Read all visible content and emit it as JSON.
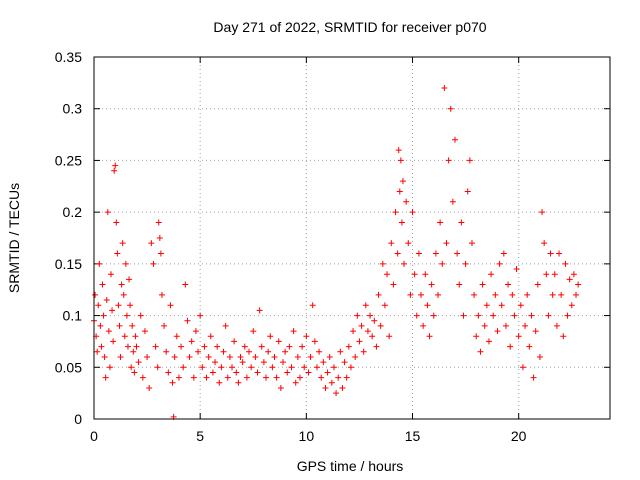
{
  "chart_data": {
    "type": "scatter",
    "title": "Day 271 of 2022, SRMTID for receiver p070",
    "xlabel": "GPS time / hours",
    "ylabel": "SRMTID / TECUs",
    "xlim": [
      0,
      24.3
    ],
    "ylim": [
      0,
      0.35
    ],
    "xticks": [
      0,
      5,
      10,
      15,
      20
    ],
    "xtick_labels": [
      "0",
      "5",
      "10",
      "15",
      "20"
    ],
    "yticks": [
      0,
      0.05,
      0.1,
      0.15,
      0.2,
      0.25,
      0.3,
      0.35
    ],
    "ytick_labels": [
      "0",
      "0.05",
      "0.1",
      "0.15",
      "0.2",
      "0.25",
      "0.3",
      "0.35"
    ],
    "grid": true,
    "marker": "+",
    "color": "#ff0000",
    "series": [
      {
        "name": "SRMTID",
        "points": [
          [
            0.0,
            0.095
          ],
          [
            0.05,
            0.12
          ],
          [
            0.1,
            0.08
          ],
          [
            0.15,
            0.065
          ],
          [
            0.2,
            0.11
          ],
          [
            0.25,
            0.15
          ],
          [
            0.3,
            0.09
          ],
          [
            0.35,
            0.07
          ],
          [
            0.4,
            0.13
          ],
          [
            0.45,
            0.1
          ],
          [
            0.5,
            0.06
          ],
          [
            0.55,
            0.04
          ],
          [
            0.6,
            0.115
          ],
          [
            0.65,
            0.2
          ],
          [
            0.7,
            0.085
          ],
          [
            0.75,
            0.05
          ],
          [
            0.8,
            0.14
          ],
          [
            0.85,
            0.105
          ],
          [
            0.9,
            0.075
          ],
          [
            0.95,
            0.24
          ],
          [
            1.0,
            0.245
          ],
          [
            1.05,
            0.19
          ],
          [
            1.1,
            0.16
          ],
          [
            1.15,
            0.11
          ],
          [
            1.2,
            0.09
          ],
          [
            1.25,
            0.06
          ],
          [
            1.3,
            0.13
          ],
          [
            1.35,
            0.17
          ],
          [
            1.4,
            0.12
          ],
          [
            1.45,
            0.08
          ],
          [
            1.5,
            0.15
          ],
          [
            1.55,
            0.1
          ],
          [
            1.6,
            0.07
          ],
          [
            1.65,
            0.135
          ],
          [
            1.7,
            0.11
          ],
          [
            1.75,
            0.05
          ],
          [
            1.8,
            0.09
          ],
          [
            1.85,
            0.065
          ],
          [
            1.9,
            0.045
          ],
          [
            1.95,
            0.08
          ],
          [
            2.0,
            0.07
          ],
          [
            2.1,
            0.055
          ],
          [
            2.2,
            0.1
          ],
          [
            2.3,
            0.04
          ],
          [
            2.4,
            0.085
          ],
          [
            2.5,
            0.06
          ],
          [
            2.6,
            0.03
          ],
          [
            2.7,
            0.17
          ],
          [
            2.8,
            0.15
          ],
          [
            2.9,
            0.07
          ],
          [
            3.0,
            0.05
          ],
          [
            3.05,
            0.19
          ],
          [
            3.1,
            0.175
          ],
          [
            3.15,
            0.16
          ],
          [
            3.2,
            0.12
          ],
          [
            3.3,
            0.09
          ],
          [
            3.4,
            0.065
          ],
          [
            3.5,
            0.045
          ],
          [
            3.6,
            0.11
          ],
          [
            3.7,
            0.035
          ],
          [
            3.75,
            0.002
          ],
          [
            3.8,
            0.06
          ],
          [
            3.9,
            0.08
          ],
          [
            4.0,
            0.04
          ],
          [
            4.1,
            0.07
          ],
          [
            4.2,
            0.05
          ],
          [
            4.3,
            0.13
          ],
          [
            4.4,
            0.095
          ],
          [
            4.5,
            0.06
          ],
          [
            4.6,
            0.075
          ],
          [
            4.7,
            0.04
          ],
          [
            4.8,
            0.085
          ],
          [
            4.9,
            0.065
          ],
          [
            5.0,
            0.1
          ],
          [
            5.1,
            0.05
          ],
          [
            5.2,
            0.07
          ],
          [
            5.3,
            0.04
          ],
          [
            5.4,
            0.06
          ],
          [
            5.5,
            0.08
          ],
          [
            5.6,
            0.045
          ],
          [
            5.7,
            0.055
          ],
          [
            5.8,
            0.07
          ],
          [
            5.9,
            0.035
          ],
          [
            6.0,
            0.05
          ],
          [
            6.1,
            0.065
          ],
          [
            6.2,
            0.09
          ],
          [
            6.3,
            0.04
          ],
          [
            6.4,
            0.06
          ],
          [
            6.5,
            0.05
          ],
          [
            6.6,
            0.075
          ],
          [
            6.7,
            0.045
          ],
          [
            6.8,
            0.035
          ],
          [
            6.9,
            0.06
          ],
          [
            7.0,
            0.055
          ],
          [
            7.1,
            0.07
          ],
          [
            7.2,
            0.04
          ],
          [
            7.3,
            0.065
          ],
          [
            7.4,
            0.05
          ],
          [
            7.5,
            0.085
          ],
          [
            7.6,
            0.06
          ],
          [
            7.7,
            0.045
          ],
          [
            7.8,
            0.105
          ],
          [
            7.9,
            0.07
          ],
          [
            8.0,
            0.055
          ],
          [
            8.1,
            0.04
          ],
          [
            8.2,
            0.065
          ],
          [
            8.3,
            0.08
          ],
          [
            8.4,
            0.05
          ],
          [
            8.5,
            0.06
          ],
          [
            8.6,
            0.04
          ],
          [
            8.7,
            0.075
          ],
          [
            8.8,
            0.03
          ],
          [
            8.9,
            0.055
          ],
          [
            9.0,
            0.065
          ],
          [
            9.1,
            0.045
          ],
          [
            9.2,
            0.07
          ],
          [
            9.3,
            0.05
          ],
          [
            9.4,
            0.085
          ],
          [
            9.5,
            0.035
          ],
          [
            9.6,
            0.06
          ],
          [
            9.7,
            0.04
          ],
          [
            9.8,
            0.07
          ],
          [
            9.9,
            0.05
          ],
          [
            10.0,
            0.08
          ],
          [
            10.1,
            0.045
          ],
          [
            10.2,
            0.06
          ],
          [
            10.3,
            0.11
          ],
          [
            10.4,
            0.075
          ],
          [
            10.5,
            0.05
          ],
          [
            10.6,
            0.065
          ],
          [
            10.7,
            0.04
          ],
          [
            10.8,
            0.055
          ],
          [
            10.9,
            0.03
          ],
          [
            11.0,
            0.045
          ],
          [
            11.1,
            0.06
          ],
          [
            11.2,
            0.035
          ],
          [
            11.3,
            0.05
          ],
          [
            11.4,
            0.025
          ],
          [
            11.5,
            0.04
          ],
          [
            11.6,
            0.065
          ],
          [
            11.7,
            0.03
          ],
          [
            11.8,
            0.055
          ],
          [
            11.9,
            0.04
          ],
          [
            12.0,
            0.07
          ],
          [
            12.1,
            0.05
          ],
          [
            12.2,
            0.085
          ],
          [
            12.3,
            0.06
          ],
          [
            12.4,
            0.1
          ],
          [
            12.5,
            0.075
          ],
          [
            12.6,
            0.09
          ],
          [
            12.7,
            0.065
          ],
          [
            12.8,
            0.11
          ],
          [
            12.9,
            0.085
          ],
          [
            13.0,
            0.1
          ],
          [
            13.1,
            0.08
          ],
          [
            13.2,
            0.095
          ],
          [
            13.3,
            0.07
          ],
          [
            13.4,
            0.12
          ],
          [
            13.5,
            0.09
          ],
          [
            13.6,
            0.15
          ],
          [
            13.7,
            0.11
          ],
          [
            13.8,
            0.14
          ],
          [
            13.9,
            0.08
          ],
          [
            14.0,
            0.17
          ],
          [
            14.1,
            0.13
          ],
          [
            14.2,
            0.2
          ],
          [
            14.3,
            0.16
          ],
          [
            14.35,
            0.26
          ],
          [
            14.4,
            0.22
          ],
          [
            14.45,
            0.25
          ],
          [
            14.5,
            0.19
          ],
          [
            14.55,
            0.23
          ],
          [
            14.6,
            0.15
          ],
          [
            14.7,
            0.21
          ],
          [
            14.8,
            0.17
          ],
          [
            14.9,
            0.12
          ],
          [
            15.0,
            0.2
          ],
          [
            15.1,
            0.14
          ],
          [
            15.2,
            0.1
          ],
          [
            15.3,
            0.16
          ],
          [
            15.4,
            0.12
          ],
          [
            15.5,
            0.09
          ],
          [
            15.6,
            0.14
          ],
          [
            15.7,
            0.11
          ],
          [
            15.8,
            0.08
          ],
          [
            15.9,
            0.13
          ],
          [
            16.0,
            0.1
          ],
          [
            16.1,
            0.16
          ],
          [
            16.2,
            0.12
          ],
          [
            16.3,
            0.19
          ],
          [
            16.4,
            0.15
          ],
          [
            16.5,
            0.32
          ],
          [
            16.6,
            0.17
          ],
          [
            16.7,
            0.25
          ],
          [
            16.8,
            0.3
          ],
          [
            16.9,
            0.21
          ],
          [
            17.0,
            0.27
          ],
          [
            17.1,
            0.16
          ],
          [
            17.2,
            0.13
          ],
          [
            17.3,
            0.19
          ],
          [
            17.4,
            0.1
          ],
          [
            17.5,
            0.15
          ],
          [
            17.6,
            0.22
          ],
          [
            17.7,
            0.25
          ],
          [
            17.8,
            0.17
          ],
          [
            17.9,
            0.12
          ],
          [
            18.0,
            0.08
          ],
          [
            18.1,
            0.1
          ],
          [
            18.2,
            0.065
          ],
          [
            18.3,
            0.13
          ],
          [
            18.4,
            0.09
          ],
          [
            18.5,
            0.11
          ],
          [
            18.6,
            0.075
          ],
          [
            18.7,
            0.14
          ],
          [
            18.8,
            0.1
          ],
          [
            18.9,
            0.12
          ],
          [
            19.0,
            0.085
          ],
          [
            19.1,
            0.15
          ],
          [
            19.2,
            0.11
          ],
          [
            19.3,
            0.16
          ],
          [
            19.4,
            0.09
          ],
          [
            19.5,
            0.13
          ],
          [
            19.6,
            0.07
          ],
          [
            19.7,
            0.12
          ],
          [
            19.8,
            0.1
          ],
          [
            19.9,
            0.145
          ],
          [
            20.0,
            0.08
          ],
          [
            20.1,
            0.11
          ],
          [
            20.2,
            0.05
          ],
          [
            20.3,
            0.09
          ],
          [
            20.4,
            0.12
          ],
          [
            20.5,
            0.07
          ],
          [
            20.6,
            0.1
          ],
          [
            20.7,
            0.04
          ],
          [
            20.8,
            0.085
          ],
          [
            20.9,
            0.13
          ],
          [
            21.0,
            0.06
          ],
          [
            21.1,
            0.2
          ],
          [
            21.2,
            0.17
          ],
          [
            21.3,
            0.14
          ],
          [
            21.4,
            0.1
          ],
          [
            21.5,
            0.16
          ],
          [
            21.6,
            0.12
          ],
          [
            21.7,
            0.14
          ],
          [
            21.8,
            0.09
          ],
          [
            21.9,
            0.16
          ],
          [
            22.0,
            0.12
          ],
          [
            22.1,
            0.08
          ],
          [
            22.2,
            0.15
          ],
          [
            22.3,
            0.1
          ],
          [
            22.4,
            0.135
          ],
          [
            22.5,
            0.11
          ],
          [
            22.6,
            0.14
          ],
          [
            22.7,
            0.12
          ],
          [
            22.8,
            0.13
          ]
        ]
      }
    ]
  }
}
